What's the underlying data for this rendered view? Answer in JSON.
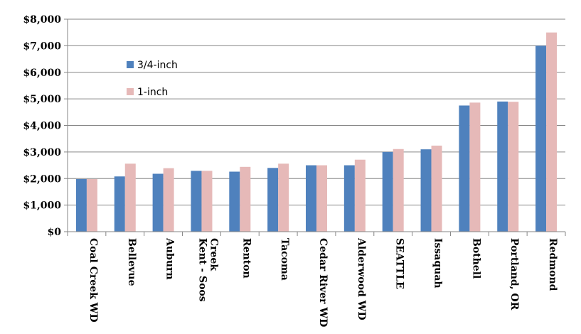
{
  "chart_data": {
    "type": "bar",
    "title": "",
    "xlabel": "",
    "ylabel": "",
    "ylim": [
      0,
      8000
    ],
    "yticks": [
      0,
      1000,
      2000,
      3000,
      4000,
      5000,
      6000,
      7000,
      8000
    ],
    "ytick_labels": [
      "$0",
      "$1,000",
      "$2,000",
      "$3,000",
      "$4,000",
      "$5,000",
      "$6,000",
      "$7,000",
      "$8,000"
    ],
    "grid": true,
    "legend_position": "top-left",
    "categories": [
      [
        "Coal Creek WD"
      ],
      [
        "Bellevue"
      ],
      [
        "Auburn"
      ],
      [
        "Kent - Soos",
        "Creek"
      ],
      [
        "Renton"
      ],
      [
        "Tacoma"
      ],
      [
        "Cedar River WD"
      ],
      [
        "Alderwood WD"
      ],
      [
        "SEATTLE"
      ],
      [
        "Issaquah"
      ],
      [
        "Bothell"
      ],
      [
        "Portland, OR"
      ],
      [
        "Redmond"
      ]
    ],
    "series": [
      {
        "name": "3/4-inch",
        "color": "#4f81bd",
        "values": [
          1980,
          2080,
          2180,
          2290,
          2260,
          2400,
          2500,
          2500,
          3000,
          3100,
          4750,
          4900,
          7000
        ]
      },
      {
        "name": "1-inch",
        "color": "#e6b9b8",
        "values": [
          1980,
          2560,
          2390,
          2290,
          2440,
          2560,
          2500,
          2710,
          3110,
          3240,
          4860,
          4890,
          7500
        ]
      }
    ]
  },
  "colors": {
    "grid": "#868686",
    "axis": "#868686"
  }
}
